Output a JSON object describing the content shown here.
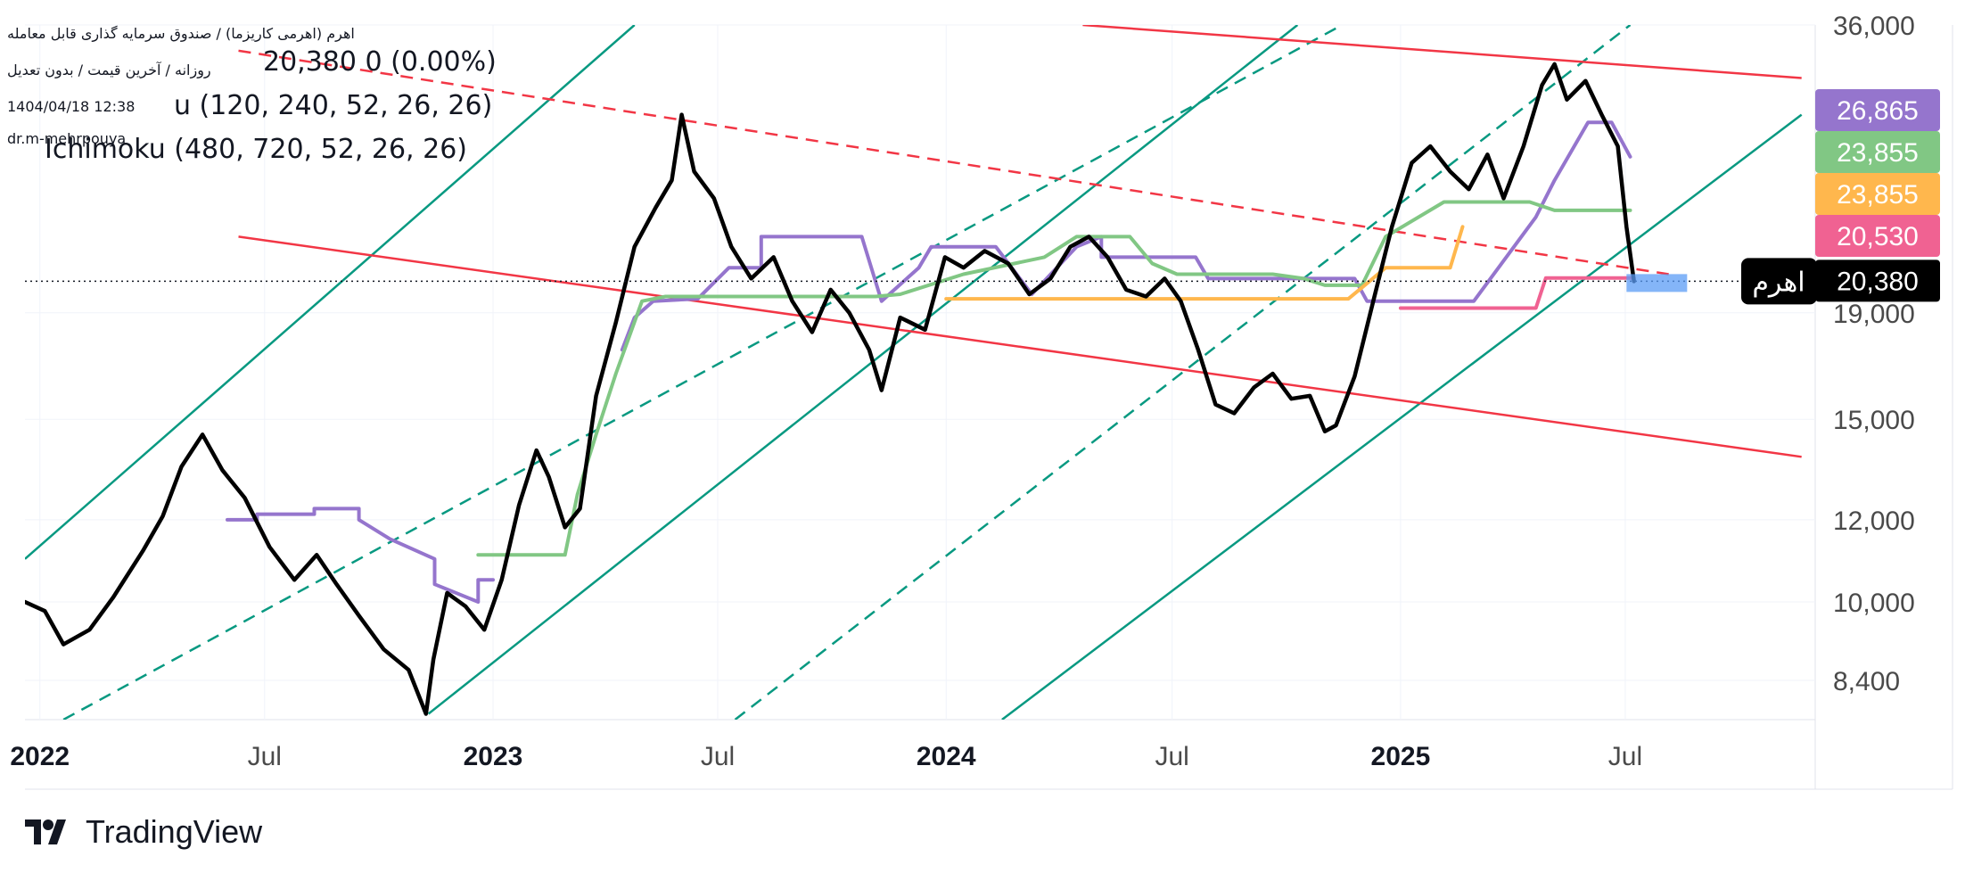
{
  "header": {
    "symbol_line": "اهرم (اهرمی کاریزما) / صندوق سرمایه گذاری قابل معامله",
    "timeframe_line": "روزانه / آخرین قیمت / بدون تعدیل",
    "date_line": "1404/04/18 12:38",
    "author": "dr.m-mehrpouya",
    "ohlc_tail": "20,380  0 (0.00%)",
    "ichimoku_1": "u (120, 240, 52, 26, 26)",
    "ichimoku_2": "Ichimoku (480, 720, 52, 26, 26)"
  },
  "branding": {
    "name": "TradingView"
  },
  "chart_data": {
    "type": "line",
    "symbol_label": "اهرم",
    "y_scale": "log",
    "ylim": [
      7700,
      36000
    ],
    "y_ticks": [
      "8,400",
      "10,000",
      "12,000",
      "15,000",
      "19,000",
      "36,000"
    ],
    "y_tick_values": [
      8400,
      10000,
      12000,
      15000,
      19000,
      36000
    ],
    "x_ticks": [
      "2022",
      "Jul",
      "2023",
      "Jul",
      "2024",
      "Jul",
      "2025",
      "Jul"
    ],
    "x_tick_dates": [
      "2022-01-01",
      "2022-07-01",
      "2023-01-01",
      "2023-07-01",
      "2024-01-01",
      "2024-07-01",
      "2025-01-01",
      "2025-07-01"
    ],
    "x_range": [
      "2021-12-20",
      "2025-12-01"
    ],
    "last_price": 20380,
    "price_labels": [
      {
        "text": "26,865",
        "value": 26865,
        "color": "#9575cd"
      },
      {
        "text": "23,855",
        "value": 23855,
        "color": "#81c784"
      },
      {
        "text": "23,855",
        "value": 23855,
        "color": "#ffb74d"
      },
      {
        "text": "20,530",
        "value": 20530,
        "color": "#f06292"
      },
      {
        "text": "20,380",
        "value": 20380,
        "color": "#000000"
      }
    ],
    "colors": {
      "price": "#000000",
      "channel_green": "#089981",
      "channel_red": "#f23645",
      "kijun_purple": "#9575cd",
      "senkou_green": "#81c784",
      "senkou_orange": "#ffb74d",
      "line_pink": "#f06292",
      "box_blue": "#5b9cf6"
    },
    "series": [
      {
        "points": [
          [
            "2021-12-20",
            10000
          ],
          [
            "2022-01-05",
            9800
          ],
          [
            "2022-01-20",
            9100
          ],
          [
            "2022-02-10",
            9400
          ],
          [
            "2022-03-01",
            10100
          ],
          [
            "2022-03-25",
            11200
          ],
          [
            "2022-04-10",
            12100
          ],
          [
            "2022-04-25",
            13500
          ],
          [
            "2022-05-12",
            14500
          ],
          [
            "2022-05-28",
            13400
          ],
          [
            "2022-06-15",
            12600
          ],
          [
            "2022-07-05",
            11300
          ],
          [
            "2022-07-25",
            10500
          ],
          [
            "2022-08-12",
            11100
          ],
          [
            "2022-08-28",
            10400
          ],
          [
            "2022-09-15",
            9700
          ],
          [
            "2022-10-05",
            9000
          ],
          [
            "2022-10-25",
            8600
          ],
          [
            "2022-11-08",
            7800
          ],
          [
            "2022-11-14",
            8800
          ],
          [
            "2022-11-25",
            10200
          ],
          [
            "2022-12-10",
            9900
          ],
          [
            "2022-12-25",
            9400
          ],
          [
            "2023-01-08",
            10500
          ],
          [
            "2023-01-22",
            12400
          ],
          [
            "2023-02-05",
            14000
          ],
          [
            "2023-02-15",
            13200
          ],
          [
            "2023-02-28",
            11800
          ],
          [
            "2023-03-12",
            12300
          ],
          [
            "2023-03-25",
            15800
          ],
          [
            "2023-04-10",
            18600
          ],
          [
            "2023-04-25",
            22000
          ],
          [
            "2023-05-12",
            24000
          ],
          [
            "2023-05-25",
            25500
          ],
          [
            "2023-06-02",
            29500
          ],
          [
            "2023-06-12",
            26000
          ],
          [
            "2023-06-28",
            24500
          ],
          [
            "2023-07-12",
            22000
          ],
          [
            "2023-07-28",
            20500
          ],
          [
            "2023-08-15",
            21500
          ],
          [
            "2023-08-30",
            19500
          ],
          [
            "2023-09-15",
            18200
          ],
          [
            "2023-09-30",
            20000
          ],
          [
            "2023-10-15",
            19000
          ],
          [
            "2023-10-31",
            17500
          ],
          [
            "2023-11-10",
            16000
          ],
          [
            "2023-11-25",
            18800
          ],
          [
            "2023-12-15",
            18300
          ],
          [
            "2023-12-31",
            21500
          ],
          [
            "2024-01-15",
            21000
          ],
          [
            "2024-02-01",
            21800
          ],
          [
            "2024-02-20",
            21200
          ],
          [
            "2024-03-08",
            19800
          ],
          [
            "2024-03-25",
            20500
          ],
          [
            "2024-04-10",
            22000
          ],
          [
            "2024-04-25",
            22500
          ],
          [
            "2024-05-10",
            21500
          ],
          [
            "2024-05-25",
            20000
          ],
          [
            "2024-06-10",
            19700
          ],
          [
            "2024-06-25",
            20500
          ],
          [
            "2024-07-08",
            19500
          ],
          [
            "2024-07-22",
            17500
          ],
          [
            "2024-08-05",
            15500
          ],
          [
            "2024-08-20",
            15200
          ],
          [
            "2024-09-05",
            16100
          ],
          [
            "2024-09-20",
            16600
          ],
          [
            "2024-10-05",
            15700
          ],
          [
            "2024-10-20",
            15800
          ],
          [
            "2024-11-01",
            14600
          ],
          [
            "2024-11-10",
            14800
          ],
          [
            "2024-11-25",
            16500
          ],
          [
            "2024-12-10",
            19500
          ],
          [
            "2024-12-25",
            23000
          ],
          [
            "2025-01-10",
            26500
          ],
          [
            "2025-01-25",
            27500
          ],
          [
            "2025-02-10",
            26000
          ],
          [
            "2025-02-25",
            25000
          ],
          [
            "2025-03-12",
            27000
          ],
          [
            "2025-03-25",
            24500
          ],
          [
            "2025-04-10",
            27500
          ],
          [
            "2025-04-25",
            31500
          ],
          [
            "2025-05-05",
            33000
          ],
          [
            "2025-05-15",
            30500
          ],
          [
            "2025-05-30",
            31800
          ],
          [
            "2025-06-12",
            29500
          ],
          [
            "2025-06-25",
            27500
          ],
          [
            "2025-07-02",
            23000
          ],
          [
            "2025-07-08",
            20380
          ]
        ]
      },
      {
        "points": [
          [
            "2022-06-01",
            12000
          ],
          [
            "2022-06-25",
            12000
          ],
          [
            "2022-06-25",
            12150
          ],
          [
            "2022-08-10",
            12150
          ],
          [
            "2022-08-10",
            12300
          ],
          [
            "2022-09-15",
            12300
          ],
          [
            "2022-09-15",
            12000
          ],
          [
            "2022-10-10",
            11500
          ],
          [
            "2022-11-15",
            11000
          ],
          [
            "2022-11-15",
            10400
          ],
          [
            "2022-12-20",
            10000
          ],
          [
            "2022-12-20",
            10500
          ],
          [
            "2023-01-01",
            10500
          ]
        ]
      },
      {
        "points": [
          [
            "2023-04-15",
            17500
          ],
          [
            "2023-04-25",
            18800
          ],
          [
            "2023-05-10",
            19500
          ],
          [
            "2023-06-15",
            19600
          ],
          [
            "2023-07-10",
            21000
          ],
          [
            "2023-08-05",
            21000
          ],
          [
            "2023-08-05",
            22500
          ],
          [
            "2023-10-25",
            22500
          ],
          [
            "2023-11-10",
            19500
          ],
          [
            "2023-12-10",
            21000
          ],
          [
            "2023-12-20",
            22000
          ],
          [
            "2024-02-10",
            22000
          ],
          [
            "2024-03-10",
            19800
          ],
          [
            "2024-04-15",
            22000
          ],
          [
            "2024-05-05",
            22500
          ],
          [
            "2024-05-05",
            21500
          ],
          [
            "2024-07-20",
            21500
          ],
          [
            "2024-07-30",
            20500
          ],
          [
            "2024-11-25",
            20500
          ],
          [
            "2024-12-05",
            19500
          ],
          [
            "2025-01-05",
            19500
          ],
          [
            "2025-03-01",
            19500
          ],
          [
            "2025-04-20",
            23500
          ],
          [
            "2025-05-05",
            25500
          ],
          [
            "2025-06-01",
            29000
          ],
          [
            "2025-06-20",
            29000
          ],
          [
            "2025-07-05",
            26865
          ]
        ]
      },
      {
        "points": [
          [
            "2022-12-20",
            11100
          ],
          [
            "2023-01-01",
            11100
          ],
          [
            "2023-02-28",
            11100
          ],
          [
            "2023-03-10",
            12700
          ],
          [
            "2023-03-25",
            14500
          ],
          [
            "2023-04-10",
            16600
          ],
          [
            "2023-05-01",
            19500
          ],
          [
            "2023-05-20",
            19700
          ],
          [
            "2023-06-01",
            19700
          ],
          [
            "2023-11-05",
            19700
          ],
          [
            "2023-11-25",
            19800
          ],
          [
            "2024-01-15",
            20700
          ],
          [
            "2024-03-20",
            21500
          ],
          [
            "2024-04-15",
            22500
          ],
          [
            "2024-05-28",
            22500
          ],
          [
            "2024-06-15",
            21200
          ],
          [
            "2024-07-05",
            20700
          ],
          [
            "2024-09-20",
            20700
          ],
          [
            "2024-10-15",
            20500
          ],
          [
            "2024-11-01",
            20200
          ],
          [
            "2024-12-01",
            20200
          ],
          [
            "2024-12-20",
            22500
          ],
          [
            "2025-02-05",
            24300
          ],
          [
            "2025-04-15",
            24300
          ],
          [
            "2025-05-05",
            23855
          ],
          [
            "2025-07-05",
            23855
          ]
        ]
      },
      {
        "points": [
          [
            "2024-01-01",
            19600
          ],
          [
            "2024-11-20",
            19600
          ],
          [
            "2024-12-01",
            20100
          ],
          [
            "2024-12-20",
            21000
          ],
          [
            "2025-02-10",
            21000
          ],
          [
            "2025-02-20",
            23000
          ]
        ]
      },
      {
        "points": [
          [
            "2025-01-01",
            19200
          ],
          [
            "2025-04-20",
            19200
          ],
          [
            "2025-04-28",
            20530
          ],
          [
            "2025-07-08",
            20530
          ]
        ]
      }
    ],
    "channels": [
      {
        "color": "#089981",
        "dash": false,
        "from": [
          "2021-12-20",
          11000
        ],
        "to": [
          "2023-04-25",
          36000
        ]
      },
      {
        "color": "#089981",
        "dash": true,
        "from": [
          "2022-01-20",
          7700
        ],
        "to": [
          "2024-11-15",
          36000
        ]
      },
      {
        "color": "#089981",
        "dash": false,
        "from": [
          "2022-11-10",
          7800
        ],
        "to": [
          "2024-10-10",
          36000
        ]
      },
      {
        "color": "#089981",
        "dash": true,
        "from": [
          "2023-07-15",
          7700
        ],
        "to": [
          "2025-07-05",
          36000
        ]
      },
      {
        "color": "#089981",
        "dash": false,
        "from": [
          "2024-02-15",
          7700
        ],
        "to": [
          "2025-11-20",
          29500
        ]
      },
      {
        "color": "#f23645",
        "dash": false,
        "from": [
          "2022-06-10",
          22500
        ],
        "to": [
          "2025-11-20",
          13800
        ]
      },
      {
        "color": "#f23645",
        "dash": true,
        "from": [
          "2022-06-10",
          34000
        ],
        "to": [
          "2025-08-05",
          20700
        ]
      },
      {
        "color": "#f23645",
        "dash": false,
        "from": [
          "2024-04-20",
          36000
        ],
        "to": [
          "2025-11-20",
          32000
        ]
      }
    ]
  }
}
